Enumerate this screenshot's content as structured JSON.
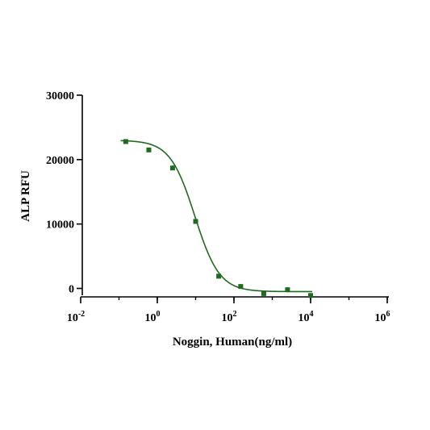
{
  "chart_data": {
    "type": "scatter",
    "xlabel": "Noggin, Human(ng/ml)",
    "ylabel": "ALP RFU",
    "x_scale": "log10",
    "xlim": [
      0.01,
      1000000
    ],
    "ylim": [
      -1500,
      30000
    ],
    "x_ticks": [
      {
        "value": 0.01,
        "base": "10",
        "exp": "-2"
      },
      {
        "value": 1,
        "base": "10",
        "exp": "0"
      },
      {
        "value": 100,
        "base": "10",
        "exp": "2"
      },
      {
        "value": 10000,
        "base": "10",
        "exp": "4"
      },
      {
        "value": 1000000,
        "base": "10",
        "exp": "6"
      }
    ],
    "y_ticks": [
      {
        "value": 0,
        "label": "0"
      },
      {
        "value": 10000,
        "label": "10000"
      },
      {
        "value": 20000,
        "label": "20000"
      },
      {
        "value": 30000,
        "label": "30000"
      }
    ],
    "series": [
      {
        "color": "#1e6b1e",
        "points": [
          {
            "x": 0.15,
            "y": 22800
          },
          {
            "x": 0.6,
            "y": 21500
          },
          {
            "x": 2.5,
            "y": 18700
          },
          {
            "x": 10,
            "y": 10400
          },
          {
            "x": 40,
            "y": 1900
          },
          {
            "x": 150,
            "y": 300
          },
          {
            "x": 600,
            "y": -800
          },
          {
            "x": 2500,
            "y": -200
          },
          {
            "x": 10000,
            "y": -1100
          }
        ],
        "fit": {
          "model": "4PL",
          "top": 23000,
          "bottom": -500,
          "ec50": 9.5,
          "hill": 1.35
        }
      }
    ],
    "grid": false
  }
}
